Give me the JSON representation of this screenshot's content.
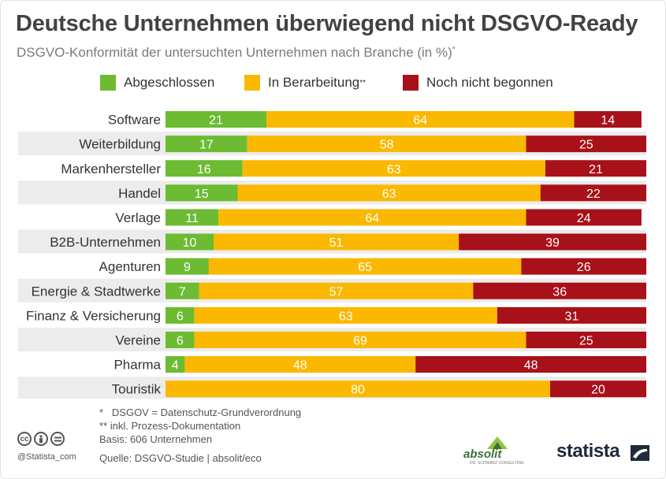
{
  "title": "Deutsche Unternehmen überwiegend nicht DSGVO-Ready",
  "subtitle": "DSGVO-Konformität der untersuchten Unternehmen nach Branche (in %)",
  "subtitle_mark": "*",
  "colors": {
    "abgeschlossen": "#6cbb32",
    "in_bearbeitung": "#fbb800",
    "noch_nicht": "#a8101a",
    "stripe": "#ececec"
  },
  "chart_data": {
    "type": "bar",
    "orientation": "horizontal",
    "stacked": true,
    "xlim": [
      0,
      100
    ],
    "legend_position": "top",
    "categories": [
      "Software",
      "Weiterbildung",
      "Markenhersteller",
      "Handel",
      "Verlage",
      "B2B-Unternehmen",
      "Agenturen",
      "Energie & Stadtwerke",
      "Finanz & Versicherung",
      "Vereine",
      "Pharma",
      "Touristik"
    ],
    "series": [
      {
        "name": "Abgeschlossen",
        "color": "#6cbb32",
        "values": [
          21,
          17,
          16,
          15,
          11,
          10,
          9,
          7,
          6,
          6,
          4,
          0
        ]
      },
      {
        "name": "In Berarbeitung",
        "name_mark": "**",
        "color": "#fbb800",
        "values": [
          64,
          58,
          63,
          63,
          64,
          51,
          65,
          57,
          63,
          69,
          48,
          80
        ]
      },
      {
        "name": "Noch nicht begonnen",
        "color": "#a8101a",
        "values": [
          14,
          25,
          21,
          22,
          24,
          39,
          26,
          36,
          31,
          25,
          48,
          20
        ]
      }
    ]
  },
  "footnotes": [
    "*   DSGOV = Datenschutz-Grundverordnung",
    "** inkl. Prozess-Dokumentation",
    "Basis: 606 Unternehmen"
  ],
  "source": "Quelle: DSGVO-Studie | absolit/eco",
  "license_icons": [
    "cc-icon",
    "by-icon",
    "equal-icon"
  ],
  "handle": "@Statista_com",
  "absolit": {
    "word": "absolit",
    "sub": "DR. SCHWARZ CONSULTING"
  },
  "statista": {
    "word": "statista"
  }
}
